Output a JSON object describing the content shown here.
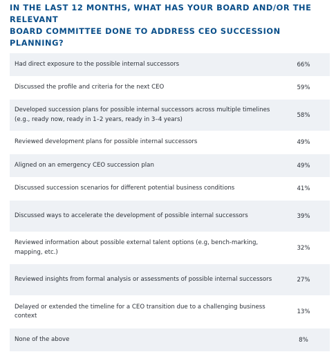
{
  "title": "IN THE LAST 12 MONTHS, WHAT HAS YOUR BOARD AND/OR THE RELEVANT\nBOARD COMMITTEE DONE TO ADDRESS CEO SUCCESSION PLANNING?",
  "colors": {
    "title": "#0a4f8a",
    "row_shaded": "#eef1f5",
    "row_plain": "#ffffff",
    "text": "#2a2f37"
  },
  "chart_data": {
    "type": "table",
    "title": "IN THE LAST 12 MONTHS, WHAT HAS YOUR BOARD AND/OR THE RELEVANT BOARD COMMITTEE DONE TO ADDRESS CEO SUCCESSION PLANNING?",
    "rows": [
      {
        "label": "Had direct exposure to the possible internal successors",
        "value": "66%"
      },
      {
        "label": "Discussed the profile and criteria for the next CEO",
        "value": "59%"
      },
      {
        "label": "Developed succession plans for possible internal successors across multiple timelines (e.g., ready now, ready in 1–2 years, ready in 3–4 years)",
        "value": "58%"
      },
      {
        "label": "Reviewed development plans for possible internal successors",
        "value": "49%"
      },
      {
        "label": "Aligned on an emergency CEO succession plan",
        "value": "49%"
      },
      {
        "label": "Discussed succession scenarios for different potential business conditions",
        "value": "41%"
      },
      {
        "label": "Discussed ways to accelerate the development of possible internal successors",
        "value": "39%"
      },
      {
        "label": "Reviewed information about possible external talent options (e.g, bench-marking, mapping, etc.)",
        "value": "32%"
      },
      {
        "label": "Reviewed insights from formal analysis or assessments of possible internal successors",
        "value": "27%"
      },
      {
        "label": "Delayed or extended the timeline for a CEO transition due to a challenging business context",
        "value": "13%"
      },
      {
        "label": "None of the above",
        "value": "8%"
      }
    ]
  }
}
